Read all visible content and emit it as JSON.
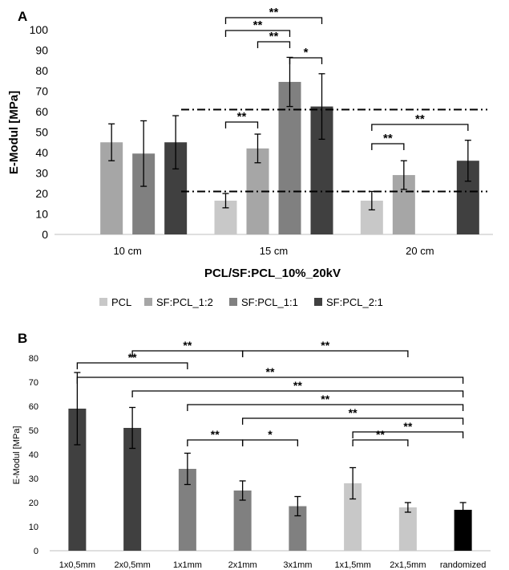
{
  "panels": [
    {
      "label": "A",
      "chart_data": {
        "type": "bar",
        "categories": [
          "10 cm",
          "15 cm",
          "20 cm"
        ],
        "series": [
          {
            "name": "PCL",
            "color": "#c8c8c8",
            "values": [
              null,
              16.5,
              16.5
            ],
            "errors": [
              null,
              3.5,
              4.5
            ]
          },
          {
            "name": "SF:PCL_1:2",
            "color": "#a6a6a6",
            "values": [
              45,
              42,
              29
            ],
            "errors": [
              9,
              7,
              7
            ]
          },
          {
            "name": "SF:PCL_1:1",
            "color": "#808080",
            "values": [
              39.5,
              74.5,
              null
            ],
            "errors": [
              16,
              12,
              null
            ]
          },
          {
            "name": "SF:PCL_2:1",
            "color": "#404040",
            "values": [
              45,
              62.5,
              36
            ],
            "errors": [
              13,
              16,
              10
            ]
          }
        ],
        "xlabel": "PCL/SF:PCL_10%_20kV",
        "ylabel": "E-Modul [MPa]",
        "ylim": [
          0,
          100
        ],
        "yticks": [
          "0",
          "10",
          "20",
          "30",
          "40",
          "50",
          "60",
          "70",
          "80",
          "90",
          "100"
        ],
        "reference_lines": [
          21,
          61
        ],
        "legend_position": "bottom",
        "significance": [
          {
            "cat": 1,
            "from": 0,
            "to": 3,
            "label": "**"
          },
          {
            "cat": 1,
            "from": 0,
            "to": 2,
            "label": "**"
          },
          {
            "cat": 1,
            "from": 1,
            "to": 2,
            "label": "**"
          },
          {
            "cat": 1,
            "from": 2,
            "to": 3,
            "label": "*"
          },
          {
            "cat": 1,
            "from": 0,
            "to": 1,
            "label": "**"
          },
          {
            "cat": 2,
            "from": 0,
            "to": 3,
            "label": "**"
          },
          {
            "cat": 2,
            "from": 0,
            "to": 1,
            "label": "**"
          }
        ]
      }
    },
    {
      "label": "B",
      "chart_data": {
        "type": "bar",
        "categories": [
          "1x0,5mm",
          "2x0,5mm",
          "1x1mm",
          "2x1mm",
          "3x1mm",
          "1x1,5mm",
          "2x1,5mm",
          "randomized"
        ],
        "values": [
          59,
          51,
          34,
          25,
          18.5,
          28,
          18,
          17
        ],
        "errors": [
          15,
          8.5,
          6.5,
          4,
          4,
          6.5,
          2,
          3
        ],
        "colors": [
          "#404040",
          "#404040",
          "#808080",
          "#808080",
          "#808080",
          "#c8c8c8",
          "#c8c8c8",
          "#000000"
        ],
        "ylabel": "E-Modul [MPa]",
        "ylim": [
          0,
          80
        ],
        "yticks": [
          "0",
          "10",
          "20",
          "30",
          "40",
          "50",
          "60",
          "70",
          "80"
        ],
        "significance": [
          {
            "from": 1,
            "to": 3,
            "label": "**"
          },
          {
            "from": 3,
            "to": 6,
            "label": "**"
          },
          {
            "from": 0,
            "to": 2,
            "label": "**"
          },
          {
            "from": 0,
            "to": 7,
            "label": "**"
          },
          {
            "from": 1,
            "to": 7,
            "label": "**"
          },
          {
            "from": 2,
            "to": 7,
            "label": "**"
          },
          {
            "from": 3,
            "to": 7,
            "label": "**"
          },
          {
            "from": 5,
            "to": 7,
            "label": "**"
          },
          {
            "from": 5,
            "to": 6,
            "label": "**"
          },
          {
            "from": 2,
            "to": 3,
            "label": "**"
          },
          {
            "from": 3,
            "to": 4,
            "label": "*"
          }
        ]
      }
    }
  ]
}
